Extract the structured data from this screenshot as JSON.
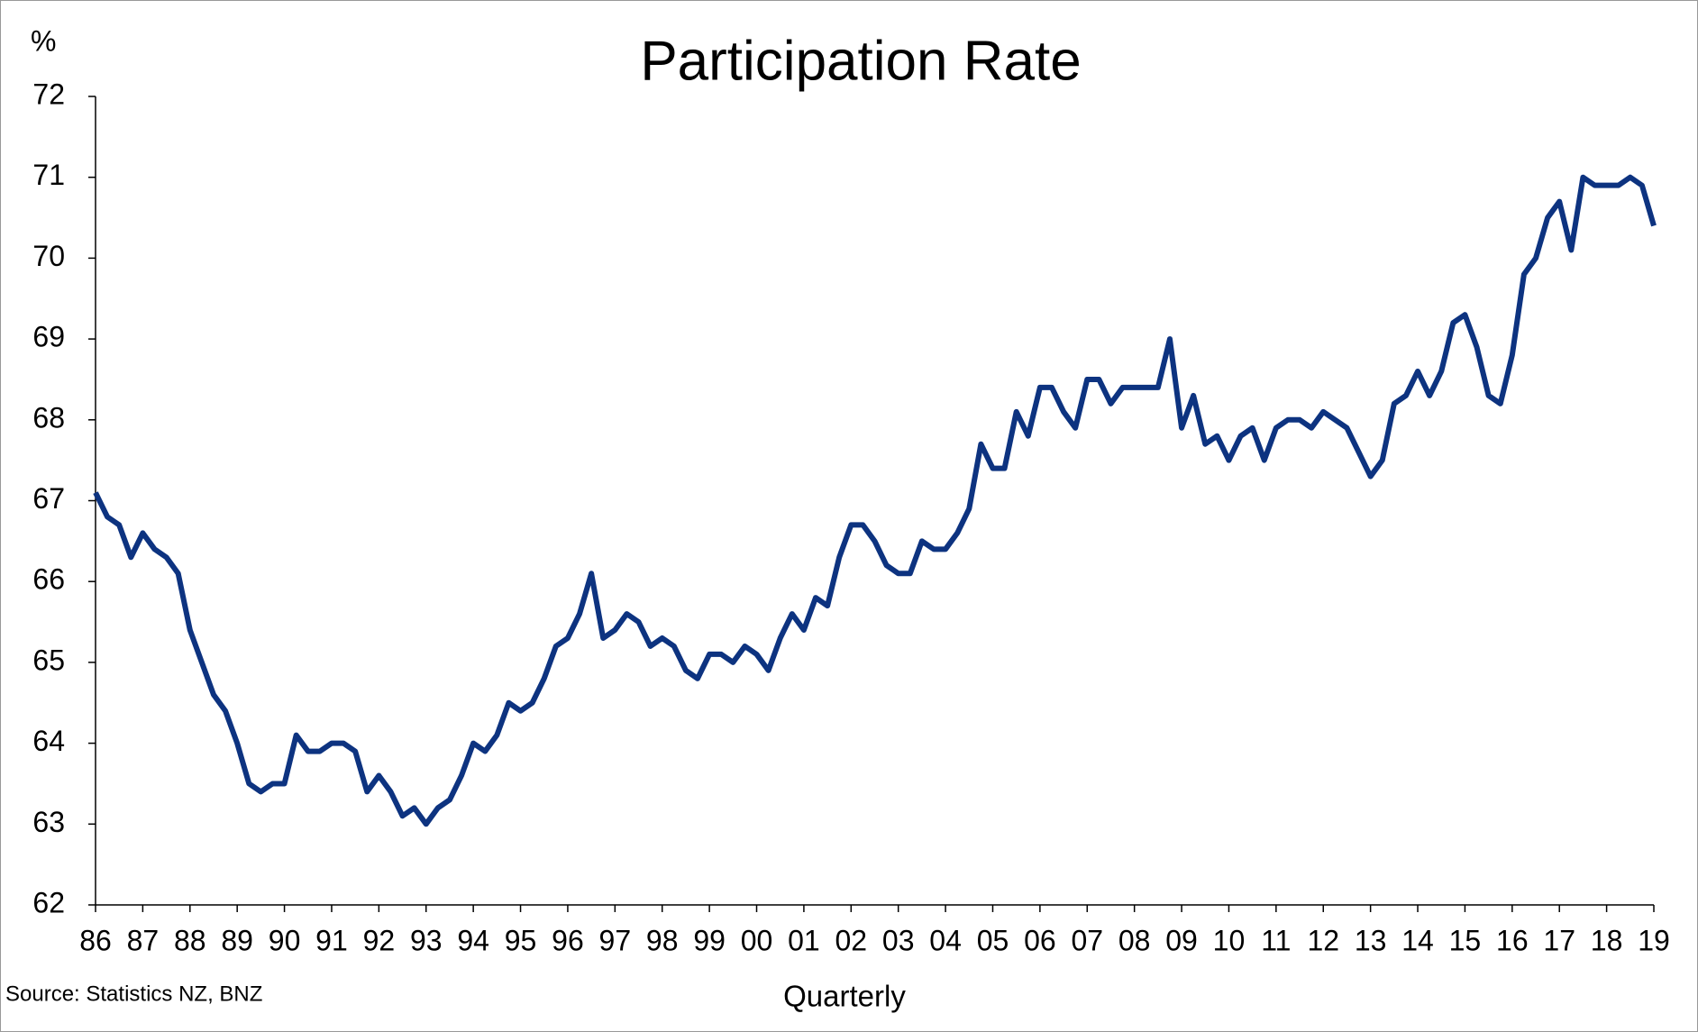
{
  "chart_data": {
    "type": "line",
    "title": "Participation Rate",
    "ylabel": "%",
    "xlabel": "Quarterly",
    "source": "Source: Statistics NZ, BNZ",
    "color": "#0d3380",
    "categories": [
      "86",
      null,
      null,
      null,
      "87",
      null,
      null,
      null,
      "88",
      null,
      null,
      null,
      "89",
      null,
      null,
      null,
      "90",
      null,
      null,
      null,
      "91",
      null,
      null,
      null,
      "92",
      null,
      null,
      null,
      "93",
      null,
      null,
      null,
      "94",
      null,
      null,
      null,
      "95",
      null,
      null,
      null,
      "96",
      null,
      null,
      null,
      "97",
      null,
      null,
      null,
      "98",
      null,
      null,
      null,
      "99",
      null,
      null,
      null,
      "00",
      null,
      null,
      null,
      "01",
      null,
      null,
      null,
      "02",
      null,
      null,
      null,
      "03",
      null,
      null,
      null,
      "04",
      null,
      null,
      null,
      "05",
      null,
      null,
      null,
      "06",
      null,
      null,
      null,
      "07",
      null,
      null,
      null,
      "08",
      null,
      null,
      null,
      "09",
      null,
      null,
      null,
      "10",
      null,
      null,
      null,
      "11",
      null,
      null,
      null,
      "12",
      null,
      null,
      null,
      "13",
      null,
      null,
      null,
      "14",
      null,
      null,
      null,
      "15",
      null,
      null,
      null,
      "16",
      null,
      null,
      null,
      "17",
      null,
      null,
      null,
      "18",
      null,
      null,
      null,
      "19"
    ],
    "values": [
      67.1,
      66.8,
      66.7,
      66.3,
      66.6,
      66.4,
      66.3,
      66.1,
      65.4,
      65.0,
      64.6,
      64.4,
      64.0,
      63.5,
      63.4,
      63.5,
      63.5,
      64.1,
      63.9,
      63.9,
      64.0,
      64.0,
      63.9,
      63.4,
      63.6,
      63.4,
      63.1,
      63.2,
      63.0,
      63.2,
      63.3,
      63.6,
      64.0,
      63.9,
      64.1,
      64.5,
      64.4,
      64.5,
      64.8,
      65.2,
      65.3,
      65.6,
      66.1,
      65.3,
      65.4,
      65.6,
      65.5,
      65.2,
      65.3,
      65.2,
      64.9,
      64.8,
      65.1,
      65.1,
      65.0,
      65.2,
      65.1,
      64.9,
      65.3,
      65.6,
      65.4,
      65.8,
      65.7,
      66.3,
      66.7,
      66.7,
      66.5,
      66.2,
      66.1,
      66.1,
      66.5,
      66.4,
      66.4,
      66.6,
      66.9,
      67.7,
      67.4,
      67.4,
      68.1,
      67.8,
      68.4,
      68.4,
      68.1,
      67.9,
      68.5,
      68.5,
      68.2,
      68.4,
      68.4,
      68.4,
      68.4,
      69.0,
      67.9,
      68.3,
      67.7,
      67.8,
      67.5,
      67.8,
      67.9,
      67.5,
      67.9,
      68.0,
      68.0,
      67.9,
      68.1,
      68.0,
      67.9,
      67.6,
      67.3,
      67.5,
      68.2,
      68.3,
      68.6,
      68.3,
      68.6,
      69.2,
      69.3,
      68.9,
      68.3,
      68.2,
      68.8,
      69.8,
      70.0,
      70.5,
      70.7,
      70.1,
      71.0,
      70.9,
      70.9,
      70.9,
      71.0,
      70.9,
      70.4
    ],
    "ylim": [
      62,
      72
    ],
    "yticks": [
      62,
      63,
      64,
      65,
      66,
      67,
      68,
      69,
      70,
      71,
      72
    ]
  }
}
